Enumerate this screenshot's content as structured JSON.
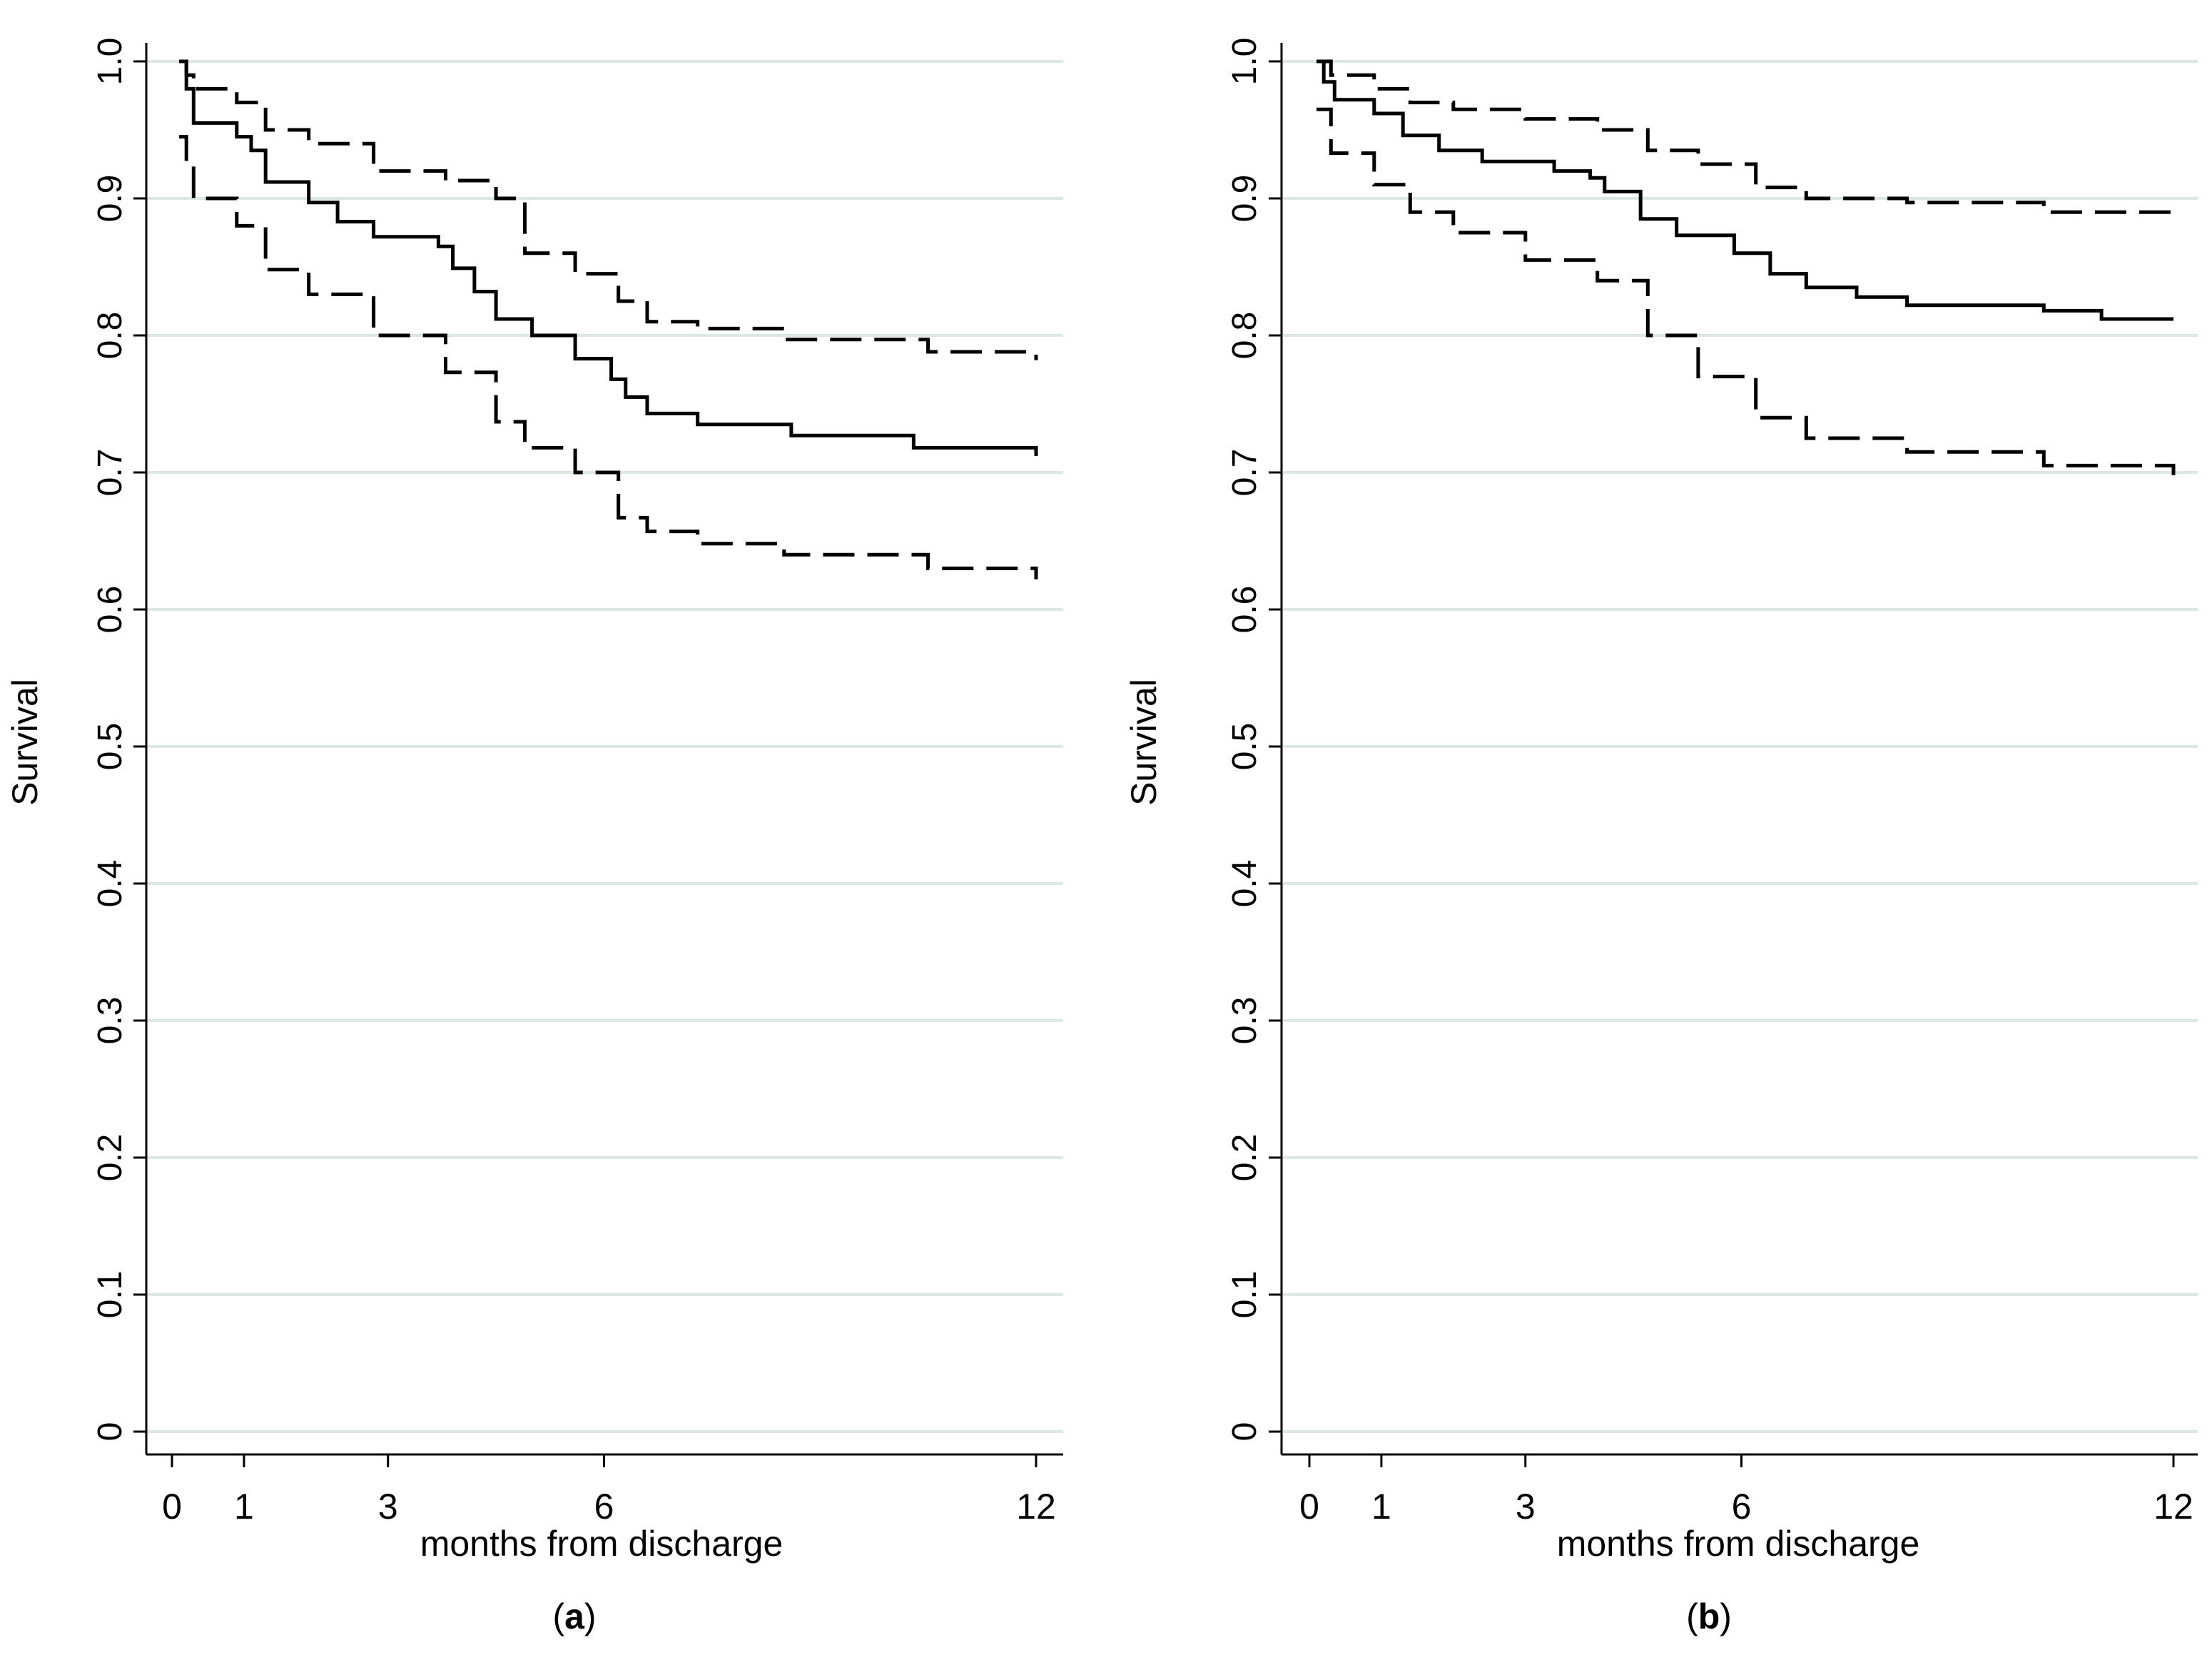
{
  "colors": {
    "gridline": "#dde7e6",
    "axis": "#000000",
    "line": "#000000",
    "background": "#ffffff"
  },
  "chart_data": [
    {
      "type": "line",
      "panel_label": "a",
      "xlabel": "months from discharge",
      "ylabel": "Survival",
      "xlim": [
        0,
        12
      ],
      "ylim": [
        0,
        1
      ],
      "xticks": [
        0,
        1,
        3,
        6,
        12
      ],
      "yticks": [
        0,
        0.1,
        0.2,
        0.3,
        0.4,
        0.5,
        0.6,
        0.7,
        0.8,
        0.9,
        1.0
      ],
      "ytick_labels": [
        "0",
        "0.1",
        "0.2",
        "0.3",
        "0.4",
        "0.5",
        "0.6",
        "0.7",
        "0.8",
        "0.9",
        "1.0"
      ],
      "grid": true,
      "series": [
        {
          "style": "solid",
          "x": [
            0.1,
            0.2,
            0.3,
            0.9,
            1.1,
            1.3,
            1.9,
            2.3,
            2.8,
            3.7,
            3.9,
            4.2,
            4.5,
            5.0,
            5.6,
            6.1,
            6.3,
            6.6,
            7.3,
            8.6,
            10.3,
            12.0
          ],
          "y": [
            1.0,
            0.98,
            0.955,
            0.945,
            0.935,
            0.912,
            0.897,
            0.883,
            0.872,
            0.865,
            0.849,
            0.832,
            0.812,
            0.8,
            0.783,
            0.768,
            0.755,
            0.743,
            0.735,
            0.727,
            0.718,
            0.712
          ]
        },
        {
          "style": "dashed",
          "x": [
            0.1,
            0.2,
            0.3,
            0.9,
            1.3,
            1.9,
            2.8,
            3.8,
            4.5,
            4.9,
            5.6,
            6.2,
            6.6,
            7.3,
            8.5,
            10.5,
            12.0
          ],
          "y": [
            1.0,
            0.99,
            0.98,
            0.97,
            0.95,
            0.94,
            0.92,
            0.913,
            0.9,
            0.86,
            0.845,
            0.825,
            0.81,
            0.805,
            0.797,
            0.788,
            0.782
          ]
        },
        {
          "style": "dashed",
          "x": [
            0.1,
            0.2,
            0.3,
            0.9,
            1.3,
            1.9,
            2.8,
            3.8,
            4.5,
            4.9,
            5.6,
            6.2,
            6.6,
            7.3,
            8.5,
            10.5,
            12.0
          ],
          "y": [
            0.945,
            0.925,
            0.9,
            0.88,
            0.848,
            0.83,
            0.8,
            0.773,
            0.737,
            0.718,
            0.7,
            0.667,
            0.657,
            0.648,
            0.64,
            0.63,
            0.622
          ]
        }
      ]
    },
    {
      "type": "line",
      "panel_label": "b",
      "xlabel": "months from discharge",
      "ylabel": "Survival",
      "xlim": [
        0,
        12
      ],
      "ylim": [
        0,
        1
      ],
      "xticks": [
        0,
        1,
        3,
        6,
        12
      ],
      "yticks": [
        0,
        0.1,
        0.2,
        0.3,
        0.4,
        0.5,
        0.6,
        0.7,
        0.8,
        0.9,
        1.0
      ],
      "ytick_labels": [
        "0",
        "0.1",
        "0.2",
        "0.3",
        "0.4",
        "0.5",
        "0.6",
        "0.7",
        "0.8",
        "0.9",
        "1.0"
      ],
      "grid": true,
      "series": [
        {
          "style": "solid",
          "x": [
            0.1,
            0.2,
            0.35,
            0.9,
            1.3,
            1.8,
            2.4,
            3.4,
            3.9,
            4.1,
            4.6,
            5.1,
            5.9,
            6.4,
            6.9,
            7.6,
            8.3,
            10.2,
            11.0,
            12.0
          ],
          "y": [
            1.0,
            0.985,
            0.972,
            0.962,
            0.946,
            0.935,
            0.927,
            0.92,
            0.915,
            0.905,
            0.885,
            0.873,
            0.86,
            0.845,
            0.835,
            0.828,
            0.822,
            0.818,
            0.812,
            0.812
          ]
        },
        {
          "style": "dashed",
          "x": [
            0.1,
            0.3,
            0.9,
            1.4,
            2.0,
            3.0,
            4.0,
            4.7,
            5.4,
            6.2,
            6.9,
            8.3,
            10.2,
            12.0
          ],
          "y": [
            1.0,
            0.99,
            0.98,
            0.97,
            0.965,
            0.958,
            0.95,
            0.935,
            0.925,
            0.908,
            0.9,
            0.897,
            0.89,
            0.885
          ]
        },
        {
          "style": "dashed",
          "x": [
            0.1,
            0.3,
            0.9,
            1.4,
            2.0,
            3.0,
            4.0,
            4.7,
            5.4,
            6.2,
            6.9,
            8.3,
            10.2,
            12.0
          ],
          "y": [
            0.965,
            0.933,
            0.91,
            0.89,
            0.875,
            0.855,
            0.84,
            0.8,
            0.77,
            0.74,
            0.725,
            0.715,
            0.705,
            0.698
          ]
        }
      ]
    }
  ]
}
